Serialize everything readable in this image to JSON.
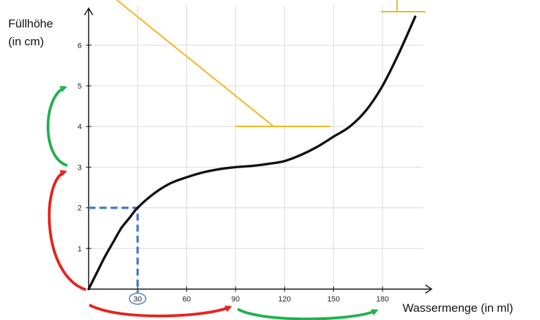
{
  "chart_data": {
    "type": "line",
    "ylabel_line1": "Füllhöhe",
    "ylabel_line2": "(in cm)",
    "xlabel": "Wassermenge (in ml)",
    "x_ticks": [
      30,
      60,
      90,
      120,
      150,
      180
    ],
    "y_ticks": [
      1,
      2,
      3,
      4,
      5,
      6
    ],
    "xlim": [
      0,
      205
    ],
    "ylim": [
      0,
      6.8
    ],
    "grid": true,
    "series": [
      {
        "color": "#111111",
        "x": [
          0,
          5,
          10,
          15,
          20,
          25,
          30,
          40,
          50,
          60,
          70,
          80,
          90,
          100,
          110,
          120,
          130,
          140,
          150,
          160,
          170,
          180,
          190,
          200
        ],
        "y": [
          0,
          0.4,
          0.8,
          1.15,
          1.5,
          1.75,
          2.0,
          2.35,
          2.6,
          2.75,
          2.87,
          2.95,
          3.0,
          3.03,
          3.08,
          3.15,
          3.3,
          3.5,
          3.75,
          4.0,
          4.4,
          5.0,
          5.8,
          6.7
        ]
      }
    ],
    "highlight": {
      "x": 30,
      "y": 2,
      "color": "#4a7cc4"
    },
    "annotation_colors": {
      "red": "#e8221d",
      "green": "#22b04f",
      "yellow": "#f2b61c"
    }
  }
}
